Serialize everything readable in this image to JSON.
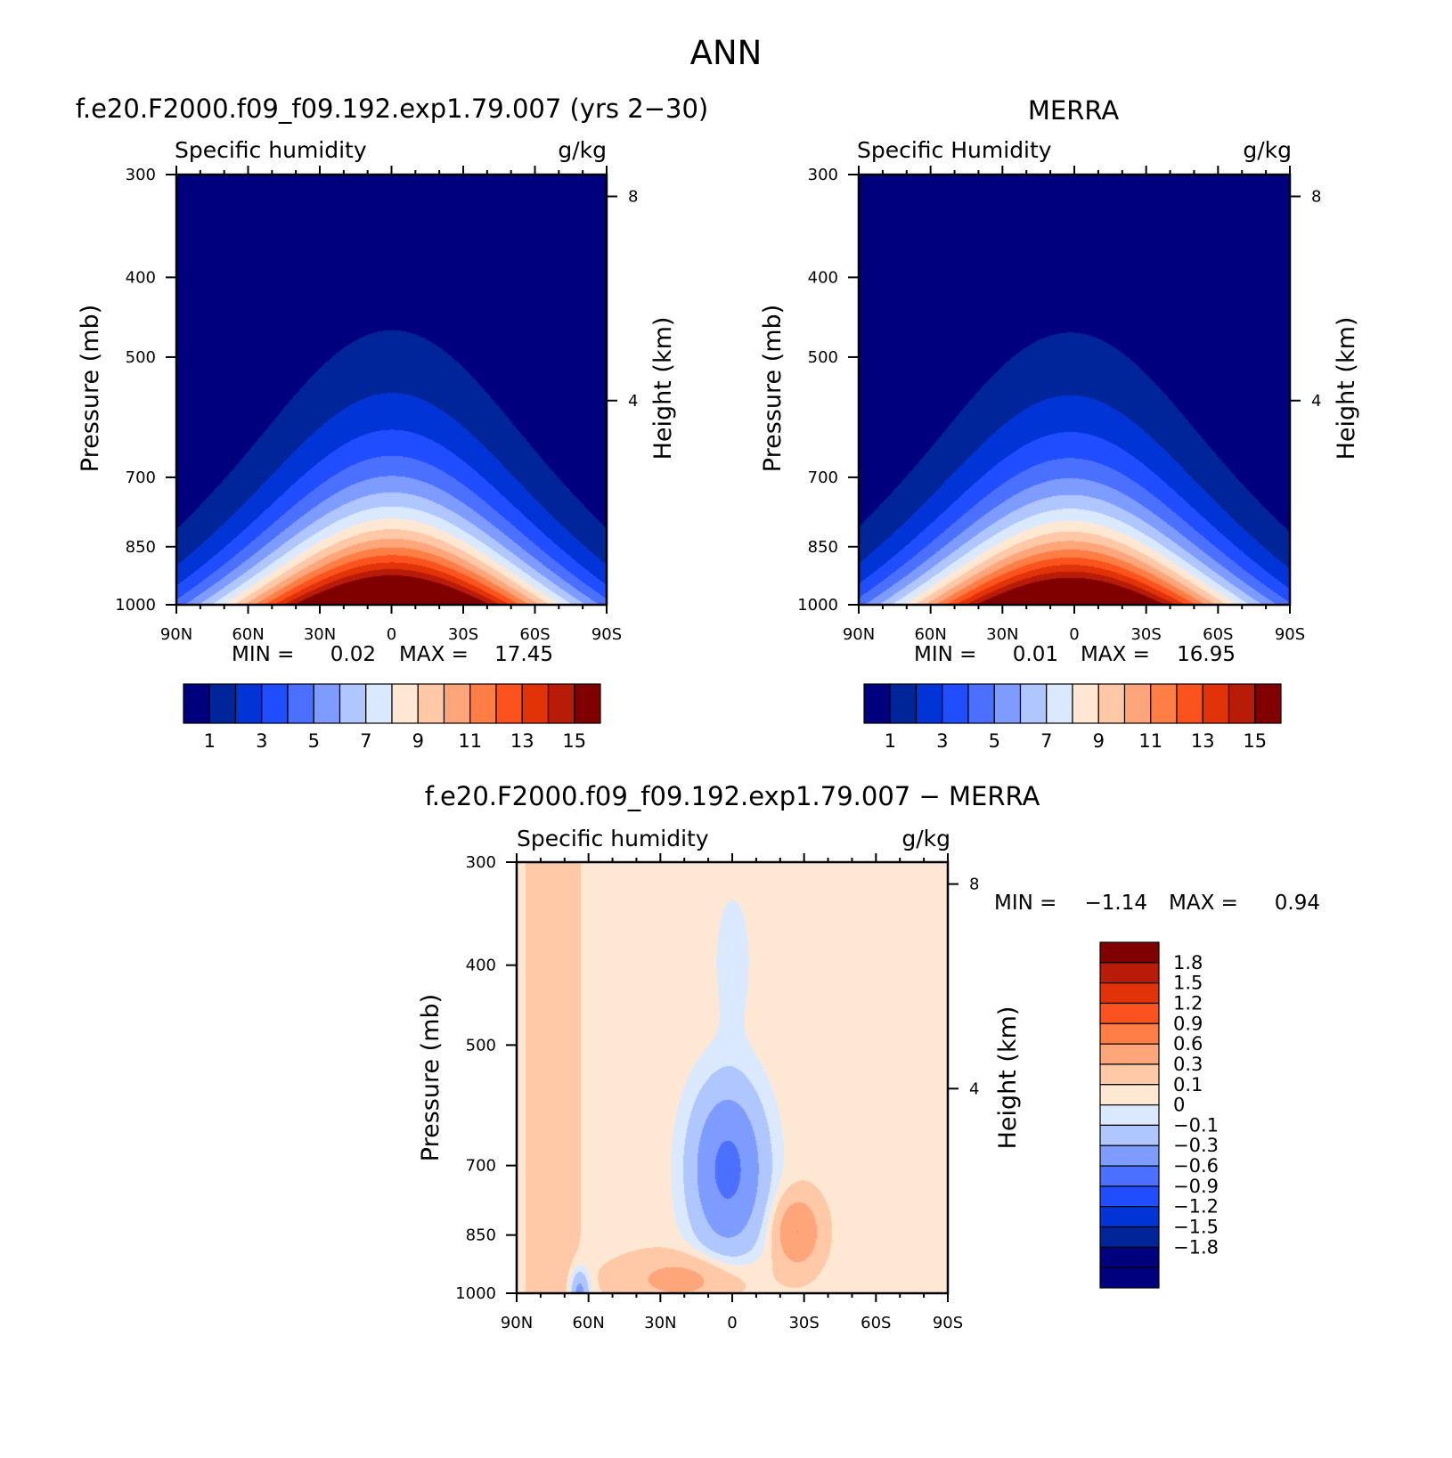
{
  "page": {
    "season": "ANN"
  },
  "chart_data": [
    {
      "type": "heatmap",
      "panel": "model",
      "title": "f.e20.F2000.f09_f09.192.exp1.79.007 (yrs 2−30)",
      "left_string": "Specific humidity",
      "right_string": "g/kg",
      "ylabel": "Pressure (mb)",
      "ylabel_right": "Height (km)",
      "x_ticks": [
        "90N",
        "60N",
        "30N",
        "0",
        "30S",
        "60S",
        "90S"
      ],
      "x_range": [
        90,
        -90
      ],
      "y_ticks": [
        "300",
        "400",
        "500",
        "700",
        "850",
        "1000"
      ],
      "y_range": [
        1000,
        300
      ],
      "y_scale": "log",
      "y_right_ticks": [
        "8",
        "4"
      ],
      "min_label": "MIN =",
      "min_value": "0.02",
      "max_label": "MAX =",
      "max_value": "17.45",
      "min": 0.02,
      "max": 17.45,
      "peak_lat": 0,
      "colorbar": {
        "orientation": "horizontal",
        "labels": [
          "1",
          "3",
          "5",
          "7",
          "9",
          "11",
          "13",
          "15"
        ],
        "levels": [
          1,
          2,
          3,
          4,
          5,
          6,
          7,
          8,
          9,
          10,
          11,
          12,
          13,
          14,
          15
        ],
        "colors": [
          "#00007f",
          "#002499",
          "#0034d6",
          "#1f4dff",
          "#4b6fff",
          "#7e9cff",
          "#b0c6ff",
          "#dbe9ff",
          "#ffe8d3",
          "#ffc8a7",
          "#ffa57a",
          "#ff7e45",
          "#fc521e",
          "#e23208",
          "#b81c08",
          "#800000"
        ]
      }
    },
    {
      "type": "heatmap",
      "panel": "obs",
      "title": "MERRA",
      "left_string": "Specific Humidity",
      "right_string": "g/kg",
      "ylabel": "Pressure (mb)",
      "ylabel_right": "Height (km)",
      "x_ticks": [
        "90N",
        "60N",
        "30N",
        "0",
        "30S",
        "60S",
        "90S"
      ],
      "x_range": [
        90,
        -90
      ],
      "y_ticks": [
        "300",
        "400",
        "500",
        "700",
        "850",
        "1000"
      ],
      "y_range": [
        1000,
        300
      ],
      "y_scale": "log",
      "y_right_ticks": [
        "8",
        "4"
      ],
      "min_label": "MIN =",
      "min_value": "0.01",
      "max_label": "MAX =",
      "max_value": "16.95",
      "min": 0.01,
      "max": 16.95,
      "peak_lat": 2,
      "colorbar": {
        "orientation": "horizontal",
        "labels": [
          "1",
          "3",
          "5",
          "7",
          "9",
          "11",
          "13",
          "15"
        ],
        "levels": [
          1,
          2,
          3,
          4,
          5,
          6,
          7,
          8,
          9,
          10,
          11,
          12,
          13,
          14,
          15
        ],
        "colors": [
          "#00007f",
          "#002499",
          "#0034d6",
          "#1f4dff",
          "#4b6fff",
          "#7e9cff",
          "#b0c6ff",
          "#dbe9ff",
          "#ffe8d3",
          "#ffc8a7",
          "#ffa57a",
          "#ff7e45",
          "#fc521e",
          "#e23208",
          "#b81c08",
          "#800000"
        ]
      }
    },
    {
      "type": "heatmap",
      "panel": "diff",
      "title": "f.e20.F2000.f09_f09.192.exp1.79.007 − MERRA",
      "left_string": "Specific humidity",
      "right_string": "g/kg",
      "ylabel": "Pressure (mb)",
      "ylabel_right": "Height (km)",
      "x_ticks": [
        "90N",
        "60N",
        "30N",
        "0",
        "30S",
        "60S",
        "90S"
      ],
      "x_range": [
        90,
        -90
      ],
      "y_ticks": [
        "300",
        "400",
        "500",
        "700",
        "850",
        "1000"
      ],
      "y_range": [
        1000,
        300
      ],
      "y_scale": "log",
      "y_right_ticks": [
        "8",
        "4"
      ],
      "min_label": "MIN =",
      "min_value": "−1.14",
      "max_label": "MAX =",
      "max_value": "0.94",
      "min": -1.14,
      "max": 0.94,
      "colorbar": {
        "orientation": "vertical",
        "labels": [
          "1.8",
          "1.5",
          "1.2",
          "0.9",
          "0.6",
          "0.3",
          "0.1",
          "0",
          "−0.1",
          "−0.3",
          "−0.6",
          "−0.9",
          "−1.2",
          "−1.5",
          "−1.8"
        ],
        "levels": [
          1.8,
          1.5,
          1.2,
          0.9,
          0.6,
          0.3,
          0.1,
          0,
          -0.1,
          -0.3,
          -0.6,
          -0.9,
          -1.2,
          -1.5,
          -1.8
        ],
        "colors": [
          "#800000",
          "#b81c08",
          "#e23208",
          "#fc521e",
          "#ff7e45",
          "#ffa57a",
          "#ffc8a7",
          "#ffe8d3",
          "#dbe9ff",
          "#b0c6ff",
          "#7e9cff",
          "#4b6fff",
          "#1f4dff",
          "#0034d6",
          "#002499",
          "#00007f"
        ]
      }
    }
  ]
}
